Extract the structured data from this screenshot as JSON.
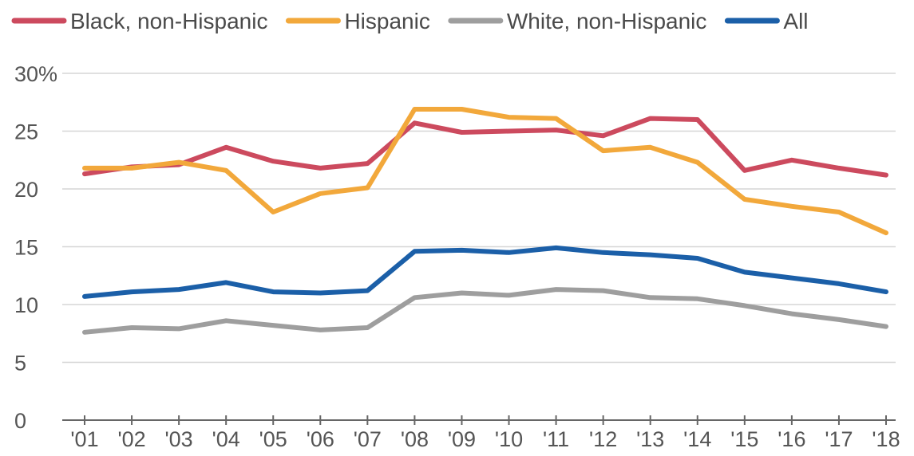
{
  "chart_data": {
    "type": "line",
    "title": "",
    "xlabel": "",
    "ylabel": "",
    "categories": [
      "'01",
      "'02",
      "'03",
      "'04",
      "'05",
      "'06",
      "'07",
      "'08",
      "'09",
      "'10",
      "'11",
      "'12",
      "'13",
      "'14",
      "'15",
      "'16",
      "'17",
      "'18"
    ],
    "ylim": [
      0,
      30
    ],
    "yticks": [
      0,
      5,
      10,
      15,
      20,
      25,
      30
    ],
    "ytick_labels": [
      "0",
      "5",
      "10",
      "15",
      "20",
      "25",
      "30%"
    ],
    "grid": true,
    "legend_position": "top",
    "series": [
      {
        "name": "Black, non-Hispanic",
        "color": "#cc4a5e",
        "values": [
          21.3,
          21.9,
          22.1,
          23.6,
          22.4,
          21.8,
          22.2,
          25.7,
          24.9,
          25.0,
          25.1,
          24.6,
          26.1,
          26.0,
          21.6,
          22.5,
          21.8,
          21.2
        ]
      },
      {
        "name": "Hispanic",
        "color": "#f2a83b",
        "values": [
          21.8,
          21.8,
          22.3,
          21.6,
          18.0,
          19.6,
          20.1,
          26.9,
          26.9,
          26.2,
          26.1,
          23.3,
          23.6,
          22.3,
          19.1,
          18.5,
          18.0,
          16.2
        ]
      },
      {
        "name": "White, non-Hispanic",
        "color": "#9e9e9e",
        "values": [
          7.6,
          8.0,
          7.9,
          8.6,
          8.2,
          7.8,
          8.0,
          10.6,
          11.0,
          10.8,
          11.3,
          11.2,
          10.6,
          10.5,
          9.9,
          9.2,
          8.7,
          8.1
        ]
      },
      {
        "name": "All",
        "color": "#1b5fa8",
        "values": [
          10.7,
          11.1,
          11.3,
          11.9,
          11.1,
          11.0,
          11.2,
          14.6,
          14.7,
          14.5,
          14.9,
          14.5,
          14.3,
          14.0,
          12.8,
          12.3,
          11.8,
          11.1
        ]
      }
    ]
  }
}
